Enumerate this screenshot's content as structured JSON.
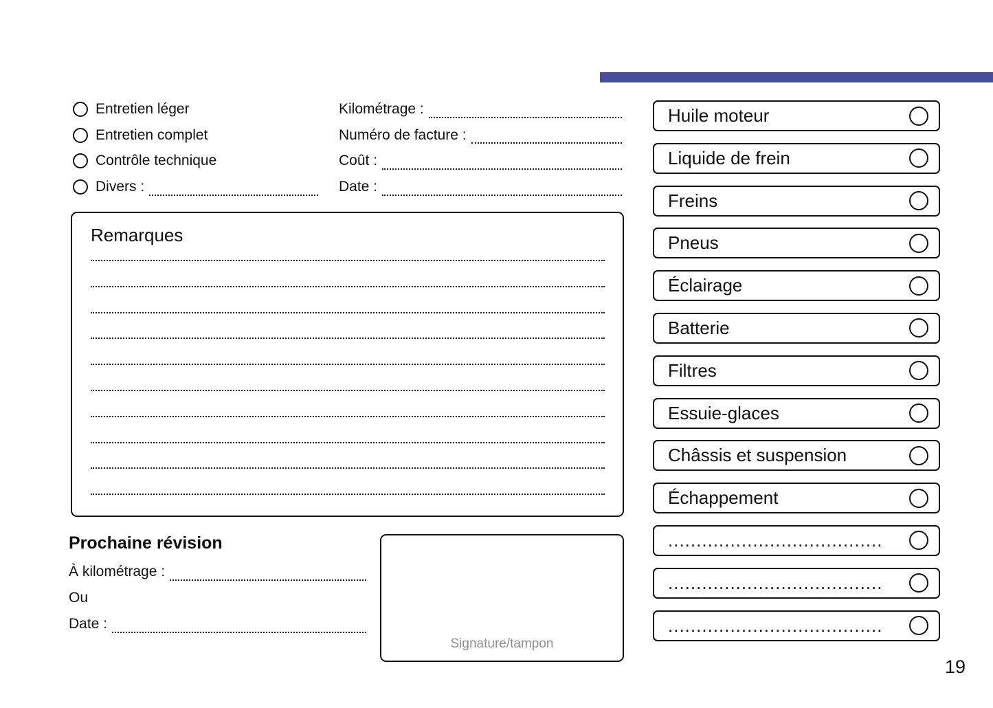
{
  "colors": {
    "accent": "#474f9a",
    "muted_text": "#8e8e8e"
  },
  "page_number": "19",
  "service_types": {
    "items": [
      {
        "label": "Entretien léger"
      },
      {
        "label": "Entretien complet"
      },
      {
        "label": "Contrôle technique"
      },
      {
        "label": "Divers :"
      }
    ]
  },
  "invoice_fields": {
    "items": [
      {
        "label": "Kilométrage :"
      },
      {
        "label": "Numéro de facture :"
      },
      {
        "label": "Coût :"
      },
      {
        "label": "Date :"
      }
    ]
  },
  "remarks": {
    "title": "Remarques",
    "line_count": 10
  },
  "next_service": {
    "title": "Prochaine révision",
    "km_label": "À kilométrage :",
    "or_label": "Ou",
    "date_label": "Date :"
  },
  "signature": {
    "label": "Signature/tampon"
  },
  "checklist": {
    "items": [
      {
        "label": "Huile moteur"
      },
      {
        "label": "Liquide de frein"
      },
      {
        "label": "Freins"
      },
      {
        "label": "Pneus"
      },
      {
        "label": "Éclairage"
      },
      {
        "label": "Batterie"
      },
      {
        "label": "Filtres"
      },
      {
        "label": "Essuie-glaces"
      },
      {
        "label": "Châssis et suspension"
      },
      {
        "label": "Échappement"
      },
      {
        "label": "......................................"
      },
      {
        "label": "......................................"
      },
      {
        "label": "......................................"
      }
    ]
  }
}
